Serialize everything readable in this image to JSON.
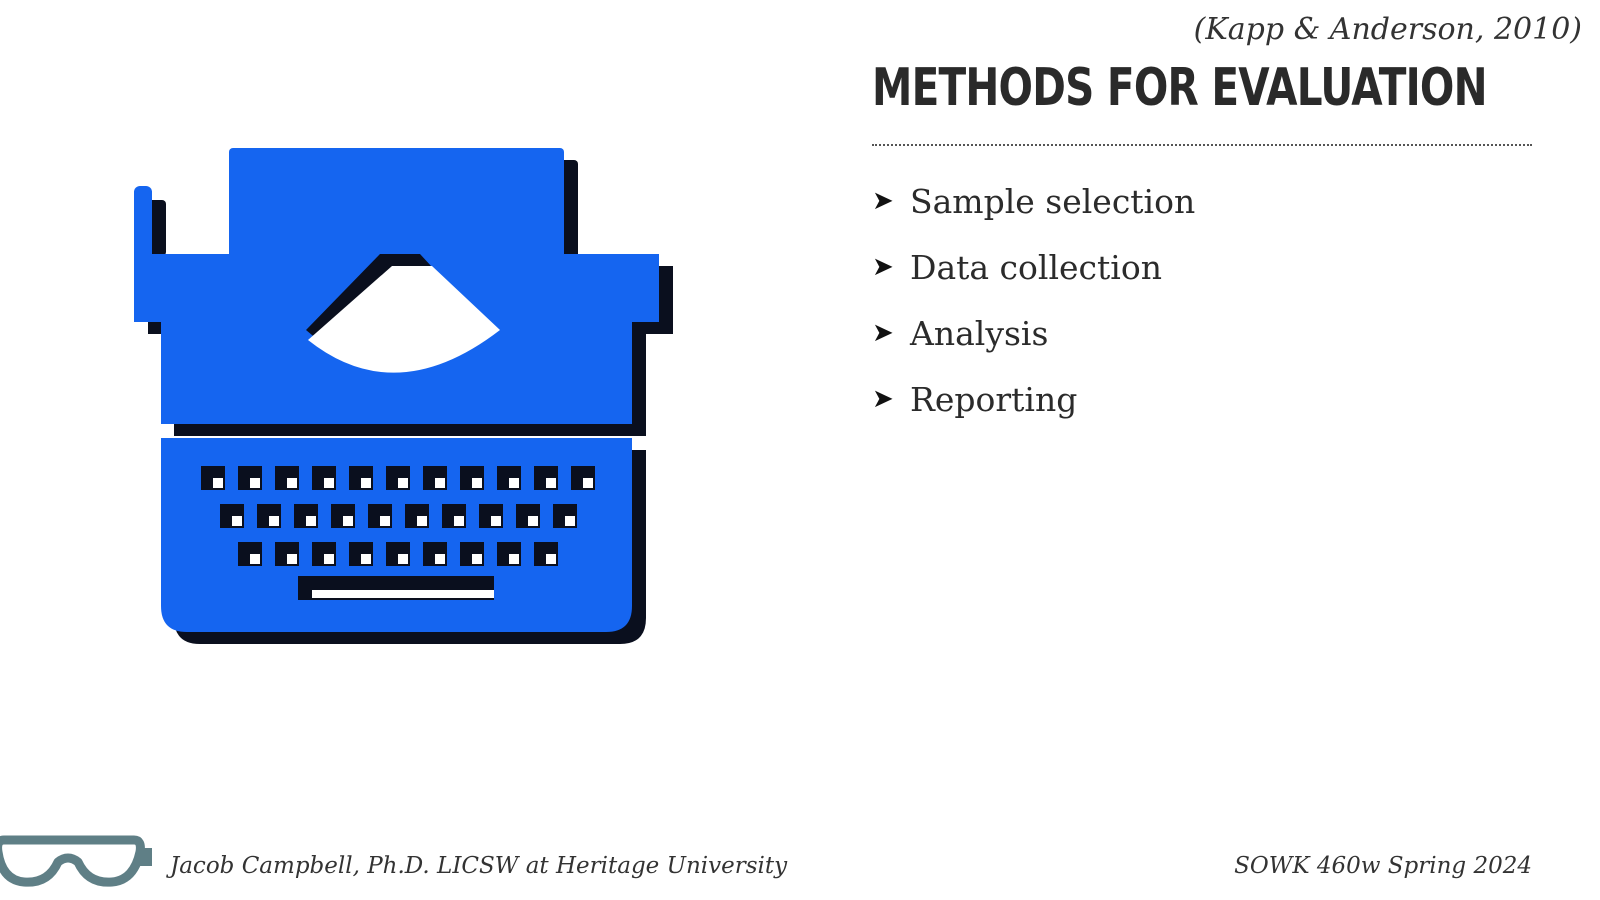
{
  "slide": {
    "citation": "(Kapp & Anderson, 2010)",
    "title": "METHODS FOR EVALUATION",
    "bullet_marker": "➤",
    "bullets": [
      "Sample selection",
      "Data collection",
      "Analysis",
      "Reporting"
    ]
  },
  "illustration": {
    "icon": "typewriter-icon",
    "color": "#1565f0",
    "shadow_color": "#0a0f1e"
  },
  "footer": {
    "logo_icon": "goggles-icon",
    "logo_color": "#5f7f86",
    "author": "Jacob Campbell, Ph.D. LICSW at Heritage University",
    "course": "SOWK 460w Spring 2024"
  }
}
